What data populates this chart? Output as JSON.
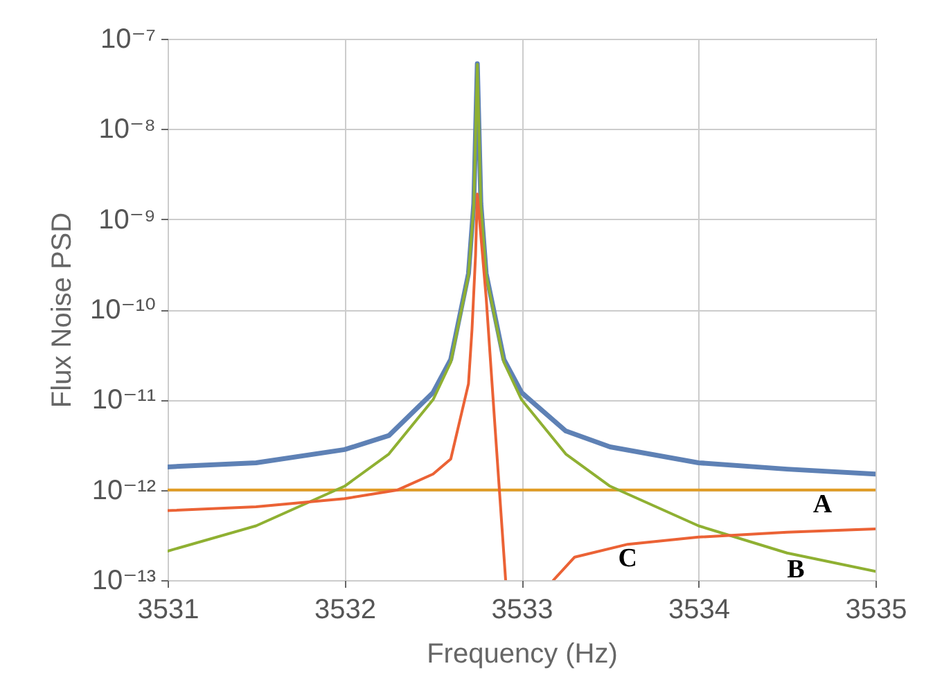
{
  "chart_data": {
    "type": "line",
    "xlabel": "Frequency (Hz)",
    "ylabel": "Flux Noise PSD",
    "log": "y",
    "grid": true,
    "xlim": [
      3531,
      3535
    ],
    "xticks": [
      3531,
      3532,
      3533,
      3534,
      3535
    ],
    "ylim": [
      1e-13,
      1e-07
    ],
    "yticks": [
      {
        "value": 1e-13,
        "label": "10⁻¹³"
      },
      {
        "value": 1e-12,
        "label": "10⁻¹²"
      },
      {
        "value": 1e-11,
        "label": "10⁻¹¹"
      },
      {
        "value": 1e-10,
        "label": "10⁻¹⁰"
      },
      {
        "value": 1e-09,
        "label": "10⁻⁹"
      },
      {
        "value": 1e-08,
        "label": "10⁻⁸"
      },
      {
        "value": 1e-07,
        "label": "10⁻⁷"
      }
    ],
    "series": [
      {
        "color": "#5e81b5",
        "x": [
          3531,
          3531.5,
          3532,
          3532.25,
          3532.5,
          3532.6,
          3532.7,
          3532.73,
          3532.75,
          3532.77,
          3532.8,
          3532.9,
          3533,
          3533.25,
          3533.5,
          3534,
          3534.5,
          3535
        ],
        "values": [
          1.8e-12,
          2e-12,
          2.8e-12,
          4e-12,
          1.2e-11,
          2.8e-11,
          2.5e-10,
          1.5e-09,
          5.3e-08,
          1.5e-09,
          2.5e-10,
          2.8e-11,
          1.2e-11,
          4.5e-12,
          3e-12,
          2e-12,
          1.7e-12,
          1.5e-12
        ]
      },
      {
        "color": "#e19c24",
        "x": [
          3531,
          3535
        ],
        "values": [
          1e-12,
          1e-12
        ]
      },
      {
        "color": "#8fb032",
        "x": [
          3531,
          3531.5,
          3532,
          3532.25,
          3532.5,
          3532.6,
          3532.7,
          3532.73,
          3532.75,
          3532.77,
          3532.8,
          3532.9,
          3533,
          3533.25,
          3533.5,
          3534,
          3534.5,
          3535
        ],
        "values": [
          2.1e-13,
          4e-13,
          1.1e-12,
          2.5e-12,
          1e-11,
          2.6e-11,
          2.4e-10,
          1.4e-09,
          5.2e-08,
          1.4e-09,
          2.4e-10,
          2.6e-11,
          1e-11,
          2.5e-12,
          1.1e-12,
          4e-13,
          2e-13,
          1.25e-13
        ]
      },
      {
        "color": "#eb6235",
        "x": [
          3531,
          3531.5,
          3532,
          3532.3,
          3532.5,
          3532.6,
          3532.7,
          3532.72,
          3532.74,
          3532.75,
          3532.8,
          3532.85,
          3532.91,
          3533,
          3533.18,
          3533.3,
          3533.6,
          3534,
          3534.5,
          3535
        ],
        "values": [
          5.9e-13,
          6.5e-13,
          8e-13,
          1e-12,
          1.5e-12,
          2.2e-12,
          1.5e-11,
          6e-11,
          4e-10,
          1.9e-09,
          1.35e-10,
          5e-12,
          1e-13,
          null,
          1e-13,
          1.8e-13,
          2.5e-13,
          3e-13,
          3.4e-13,
          3.7e-13
        ]
      }
    ],
    "annotations": [
      {
        "text": "A",
        "x": 3534.7,
        "y": 1e-12
      },
      {
        "text": "B",
        "x": 3534.55,
        "y": 1.9e-13
      },
      {
        "text": "C",
        "x": 3533.6,
        "y": 2.5e-13
      }
    ]
  }
}
